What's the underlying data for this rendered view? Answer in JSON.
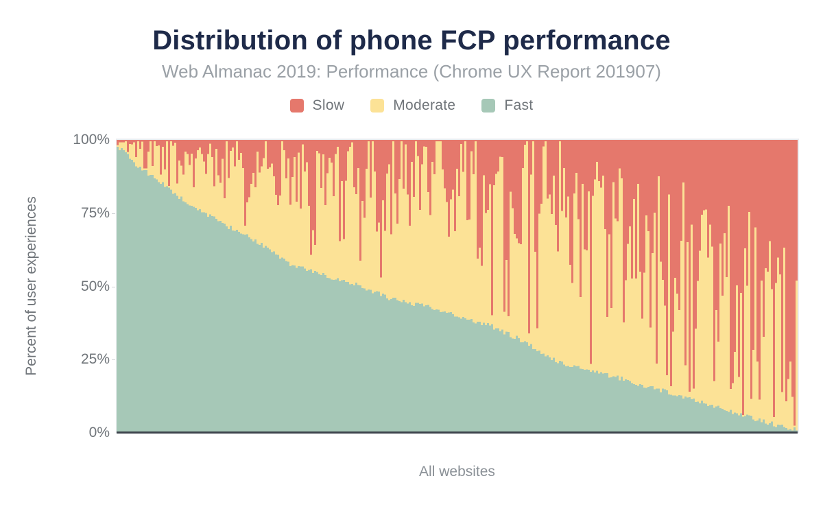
{
  "header": {
    "title": "Distribution of phone FCP performance",
    "subtitle": "Web Almanac 2019: Performance (Chrome UX Report 201907)"
  },
  "axes": {
    "y_title": "Percent of user experiences",
    "x_title": "All websites",
    "y_ticks": [
      {
        "label": "100%",
        "value": 100
      },
      {
        "label": "75%",
        "value": 75
      },
      {
        "label": "50%",
        "value": 50
      },
      {
        "label": "25%",
        "value": 25
      },
      {
        "label": "0%",
        "value": 0
      }
    ]
  },
  "colors": {
    "background": "#ffffff",
    "title_text": "#1e2a49",
    "subtitle_text": "#9aa0a6",
    "axis_text": "#70757a",
    "axis_line": "#3d434c",
    "plot_frame": "#e9ebee",
    "slow": "#e5786c",
    "moderate": "#fce296",
    "fast": "#a6c8b7"
  },
  "chart_data": {
    "type": "bar",
    "stacked": true,
    "orientation": "vertical",
    "title": "Distribution of phone FCP performance",
    "subtitle": "Web Almanac 2019: Performance (Chrome UX Report 201907)",
    "xlabel": "All websites",
    "ylabel": "Percent of user experiences",
    "ylim": [
      0,
      100
    ],
    "grid": false,
    "legend_position": "top",
    "legend": [
      {
        "name": "Slow",
        "color": "#e5786c"
      },
      {
        "name": "Moderate",
        "color": "#fce296"
      },
      {
        "name": "Fast",
        "color": "#a6c8b7"
      }
    ],
    "series_boundaries": {
      "fast_pct_vs_position": [
        [
          0,
          97.5
        ],
        [
          0.01,
          96
        ],
        [
          0.03,
          91
        ],
        [
          0.06,
          86
        ],
        [
          0.1,
          79
        ],
        [
          0.15,
          72
        ],
        [
          0.2,
          66
        ],
        [
          0.25,
          58
        ],
        [
          0.3,
          54
        ],
        [
          0.35,
          51
        ],
        [
          0.4,
          46
        ],
        [
          0.45,
          43.5
        ],
        [
          0.5,
          40
        ],
        [
          0.55,
          36.5
        ],
        [
          0.6,
          31
        ],
        [
          0.65,
          24
        ],
        [
          0.7,
          21
        ],
        [
          0.75,
          18
        ],
        [
          0.8,
          14.5
        ],
        [
          0.85,
          11
        ],
        [
          0.9,
          7.5
        ],
        [
          0.95,
          4
        ],
        [
          0.98,
          2
        ],
        [
          1,
          1
        ]
      ],
      "fast_plus_moderate_avg_pct_vs_position": [
        [
          0,
          99.5
        ],
        [
          0.1,
          97.5
        ],
        [
          0.2,
          96
        ],
        [
          0.3,
          94.5
        ],
        [
          0.4,
          93
        ],
        [
          0.5,
          91
        ],
        [
          0.6,
          88
        ],
        [
          0.65,
          85.5
        ],
        [
          0.7,
          82
        ],
        [
          0.75,
          77
        ],
        [
          0.8,
          70
        ],
        [
          0.85,
          63
        ],
        [
          0.9,
          58
        ],
        [
          0.95,
          55
        ],
        [
          1,
          53
        ]
      ]
    },
    "synthesis": {
      "bar_count": 331,
      "seed": 42,
      "fast_jitter": 1.6,
      "fast_min": 0.4,
      "up_jitter_base": 2,
      "up_jitter_slope": 26,
      "dip_base": 12,
      "dip_slope": 56,
      "dip_power": 1.7,
      "deep_spike_prob_slope": 0.13,
      "deep_spike_offset": 1.5,
      "deep_spike_range": 10,
      "top_max": 99.5,
      "min_moderate": 0.6
    }
  }
}
